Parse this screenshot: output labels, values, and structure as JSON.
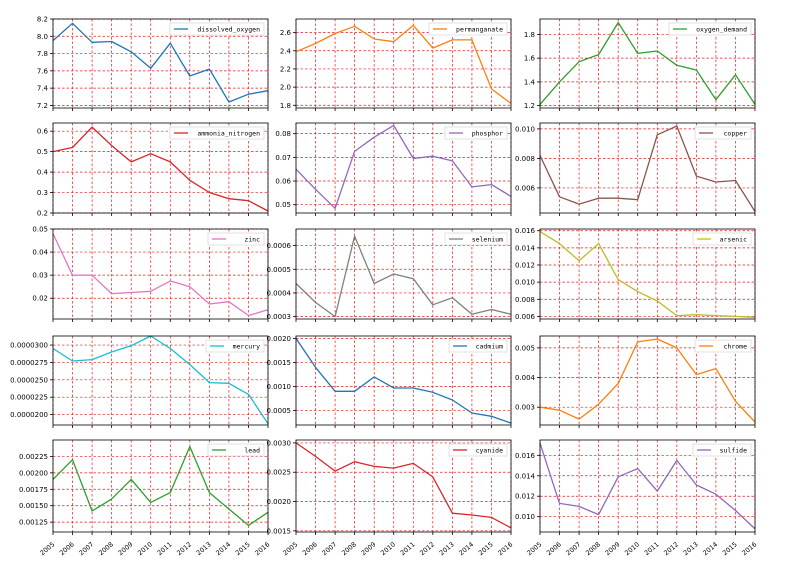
{
  "chart_data": {
    "type": "line",
    "layout": "5x3 grid of subplots, shared x axis",
    "x": [
      2005,
      2006,
      2007,
      2008,
      2009,
      2010,
      2011,
      2012,
      2013,
      2014,
      2015,
      2016
    ],
    "x_tick_labels": [
      "2005",
      "2006",
      "2007",
      "2008",
      "2009",
      "2010",
      "2011",
      "2012",
      "2013",
      "2014",
      "2015",
      "2016"
    ],
    "grid": true,
    "legend_position": "upper right",
    "subplots": [
      {
        "name": "dissolved_oxygen",
        "color": "#1f77b4",
        "ylim": [
          7.17,
          8.2
        ],
        "ytick_values": [
          7.2,
          7.4,
          7.6,
          7.8,
          8.0,
          8.2
        ],
        "ytick_labels": [
          "7.2",
          "7.4",
          "7.6",
          "7.8",
          "8.0",
          "8.2"
        ],
        "values": [
          7.95,
          8.15,
          7.93,
          7.94,
          7.82,
          7.63,
          7.92,
          7.54,
          7.62,
          7.24,
          7.33,
          7.37
        ]
      },
      {
        "name": "permanganate",
        "color": "#ff7f0e",
        "ylim": [
          1.77,
          2.75
        ],
        "ytick_values": [
          1.8,
          2.0,
          2.2,
          2.4,
          2.6
        ],
        "ytick_labels": [
          "1.8",
          "2.0",
          "2.2",
          "2.4",
          "2.6"
        ],
        "values": [
          2.39,
          2.48,
          2.59,
          2.67,
          2.53,
          2.5,
          2.68,
          2.43,
          2.52,
          2.52,
          1.98,
          1.82
        ]
      },
      {
        "name": "oxygen_demand",
        "color": "#2ca02c",
        "ylim": [
          1.18,
          1.93
        ],
        "ytick_values": [
          1.2,
          1.4,
          1.6,
          1.8
        ],
        "ytick_labels": [
          "1.2",
          "1.4",
          "1.6",
          "1.8"
        ],
        "values": [
          1.21,
          1.4,
          1.57,
          1.63,
          1.9,
          1.64,
          1.66,
          1.54,
          1.5,
          1.25,
          1.46,
          1.21
        ]
      },
      {
        "name": "ammonia_nitrogen",
        "color": "#d62728",
        "ylim": [
          0.2,
          0.64
        ],
        "ytick_values": [
          0.2,
          0.3,
          0.4,
          0.5,
          0.6
        ],
        "ytick_labels": [
          "0.2",
          "0.3",
          "0.4",
          "0.5",
          "0.6"
        ],
        "values": [
          0.5,
          0.52,
          0.62,
          0.53,
          0.45,
          0.49,
          0.45,
          0.36,
          0.3,
          0.27,
          0.26,
          0.21
        ]
      },
      {
        "name": "phosphor",
        "color": "#9467bd",
        "ylim": [
          0.0465,
          0.0845
        ],
        "ytick_values": [
          0.05,
          0.06,
          0.07,
          0.08
        ],
        "ytick_labels": [
          "0.05",
          "0.06",
          "0.07",
          "0.08"
        ],
        "values": [
          0.065,
          0.0565,
          0.0485,
          0.0725,
          0.0785,
          0.0835,
          0.0695,
          0.0705,
          0.0685,
          0.0575,
          0.0585,
          0.0535
        ]
      },
      {
        "name": "copper",
        "color": "#8c564b",
        "ylim": [
          0.0043,
          0.0104
        ],
        "ytick_values": [
          0.006,
          0.008,
          0.01
        ],
        "ytick_labels": [
          "0.006",
          "0.008",
          "0.010"
        ],
        "values": [
          0.0082,
          0.0054,
          0.0049,
          0.0053,
          0.0053,
          0.0052,
          0.0096,
          0.0102,
          0.0068,
          0.0064,
          0.0065,
          0.0044
        ]
      },
      {
        "name": "zinc",
        "color": "#e377c2",
        "ylim": [
          0.011,
          0.05
        ],
        "ytick_values": [
          0.02,
          0.03,
          0.04,
          0.05
        ],
        "ytick_labels": [
          "0.02",
          "0.03",
          "0.04",
          "0.05"
        ],
        "values": [
          0.048,
          0.03,
          0.03,
          0.022,
          0.0225,
          0.023,
          0.0275,
          0.025,
          0.0175,
          0.0185,
          0.0125,
          0.015
        ]
      },
      {
        "name": "selenium",
        "color": "#7f7f7f",
        "ylim": [
          0.00029,
          0.00067
        ],
        "ytick_values": [
          0.0003,
          0.0004,
          0.0005,
          0.0006
        ],
        "ytick_labels": [
          "0.0003",
          "0.0004",
          "0.0005",
          "0.0006"
        ],
        "values": [
          0.00044,
          0.00036,
          0.0003,
          0.00064,
          0.00044,
          0.00048,
          0.00046,
          0.00035,
          0.00038,
          0.00031,
          0.00033,
          0.00031
        ]
      },
      {
        "name": "arsenic",
        "color": "#bcbd22",
        "ylim": [
          0.0057,
          0.0162
        ],
        "ytick_values": [
          0.006,
          0.008,
          0.01,
          0.012,
          0.014,
          0.016
        ],
        "ytick_labels": [
          "0.006",
          "0.008",
          "0.010",
          "0.012",
          "0.014",
          "0.016"
        ],
        "values": [
          0.0159,
          0.0145,
          0.0125,
          0.0145,
          0.0103,
          0.0089,
          0.0078,
          0.0061,
          0.0062,
          0.0061,
          0.006,
          0.0059
        ]
      },
      {
        "name": "mercury",
        "color": "#17becf",
        "ylim": [
          1.85e-05,
          3.13e-05
        ],
        "ytick_values": [
          2e-05,
          2.25e-05,
          2.5e-05,
          2.75e-05,
          3e-05
        ],
        "ytick_labels": [
          "0.0000200",
          "0.0000225",
          "0.0000250",
          "0.0000275",
          "0.0000300"
        ],
        "values": [
          2.95e-05,
          2.77e-05,
          2.79e-05,
          2.9e-05,
          2.99e-05,
          3.13e-05,
          2.95e-05,
          2.72e-05,
          2.46e-05,
          2.45e-05,
          2.29e-05,
          1.87e-05
        ]
      },
      {
        "name": "cadmium",
        "color": "#1f77b4",
        "ylim": [
          0.0002,
          0.00205
        ],
        "ytick_values": [
          0.0005,
          0.001,
          0.0015,
          0.002
        ],
        "ytick_labels": [
          "0.0005",
          "0.0010",
          "0.0015",
          "0.0020"
        ],
        "values": [
          0.002,
          0.0014,
          0.0009,
          0.0009,
          0.0012,
          0.00097,
          0.00097,
          0.00088,
          0.00072,
          0.00045,
          0.00038,
          0.00024
        ]
      },
      {
        "name": "chrome",
        "color": "#ff7f0e",
        "ylim": [
          0.0024,
          0.0054
        ],
        "ytick_values": [
          0.003,
          0.004,
          0.005
        ],
        "ytick_labels": [
          "0.003",
          "0.004",
          "0.005"
        ],
        "values": [
          0.003,
          0.0029,
          0.0026,
          0.0031,
          0.0038,
          0.0052,
          0.0053,
          0.005,
          0.0041,
          0.0043,
          0.0032,
          0.0025
        ]
      },
      {
        "name": "lead",
        "color": "#2ca02c",
        "ylim": [
          0.0011,
          0.0025
        ],
        "ytick_values": [
          0.00125,
          0.0015,
          0.00175,
          0.002,
          0.00225
        ],
        "ytick_labels": [
          "0.00125",
          "0.00150",
          "0.00175",
          "0.00200",
          "0.00225"
        ],
        "values": [
          0.0019,
          0.0022,
          0.00142,
          0.0016,
          0.0019,
          0.00155,
          0.0017,
          0.0024,
          0.0017,
          0.00145,
          0.0012,
          0.0014
        ]
      },
      {
        "name": "cyanide",
        "color": "#d62728",
        "ylim": [
          0.00148,
          0.00305
        ],
        "ytick_values": [
          0.0015,
          0.002,
          0.0025,
          0.003
        ],
        "ytick_labels": [
          "0.0015",
          "0.0020",
          "0.0025",
          "0.0030"
        ],
        "values": [
          0.003,
          0.00277,
          0.00252,
          0.00268,
          0.0026,
          0.00257,
          0.00265,
          0.00242,
          0.0018,
          0.00177,
          0.00173,
          0.00155
        ]
      },
      {
        "name": "sulfide",
        "color": "#9467bd",
        "ylim": [
          0.0085,
          0.0175
        ],
        "ytick_values": [
          0.01,
          0.012,
          0.014,
          0.016
        ],
        "ytick_labels": [
          "0.010",
          "0.012",
          "0.014",
          "0.016"
        ],
        "values": [
          0.0172,
          0.0113,
          0.011,
          0.0102,
          0.0139,
          0.0147,
          0.0125,
          0.0155,
          0.0131,
          0.0122,
          0.0106,
          0.0088
        ]
      }
    ]
  }
}
